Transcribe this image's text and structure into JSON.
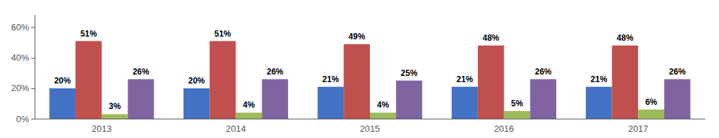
{
  "chart_data": {
    "type": "bar",
    "categories": [
      "2013",
      "2014",
      "2015",
      "2016",
      "2017"
    ],
    "series": [
      {
        "color": "#4472C4",
        "values": [
          20,
          20,
          21,
          21,
          21
        ],
        "value_labels": [
          "20%",
          "20%",
          "21%",
          "21%",
          "21%"
        ]
      },
      {
        "color": "#C0504D",
        "values": [
          51,
          51,
          49,
          48,
          48
        ],
        "value_labels": [
          "51%",
          "51%",
          "49%",
          "48%",
          "48%"
        ]
      },
      {
        "color": "#9BBB59",
        "values": [
          3,
          4,
          4,
          5,
          6
        ],
        "value_labels": [
          "3%",
          "4%",
          "4%",
          "5%",
          "6%"
        ]
      },
      {
        "color": "#8064A2",
        "values": [
          26,
          26,
          25,
          26,
          26
        ],
        "value_labels": [
          "26%",
          "26%",
          "25%",
          "26%",
          "26%"
        ]
      }
    ],
    "ylim": [
      0,
      68
    ],
    "yticks": [
      {
        "value": 0,
        "label": "0%"
      },
      {
        "value": 20,
        "label": "20%"
      },
      {
        "value": 40,
        "label": "40%"
      },
      {
        "value": 60,
        "label": "60%"
      }
    ],
    "grid": false,
    "data_labels": true
  }
}
